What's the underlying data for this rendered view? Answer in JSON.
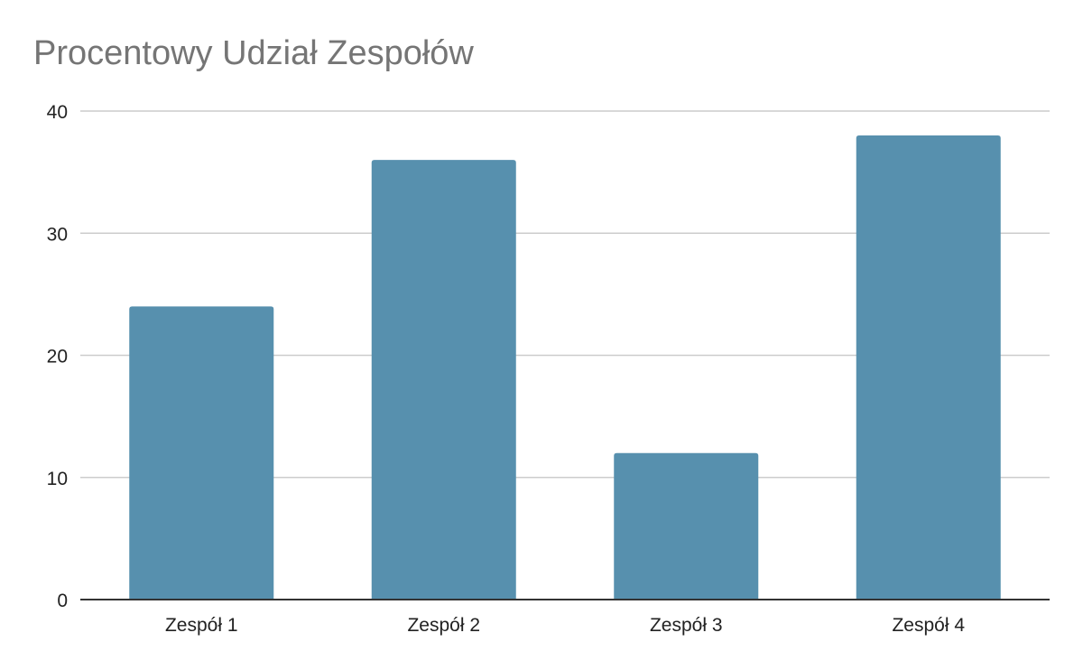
{
  "chart_data": {
    "type": "bar",
    "title": "Procentowy Udział Zespołów",
    "xlabel": "",
    "ylabel": "",
    "categories": [
      "Zespół 1",
      "Zespół 2",
      "Zespół 3",
      "Zespół 4"
    ],
    "values": [
      24,
      36,
      12,
      38
    ],
    "ylim": [
      0,
      40
    ],
    "yticks": [
      "0",
      "10",
      "20",
      "30",
      "40"
    ],
    "grid": true,
    "legend": "none",
    "bar_color": "#5790ae",
    "grid_color": "#cccccc",
    "axis_color": "#333333",
    "title_color": "#757575"
  }
}
